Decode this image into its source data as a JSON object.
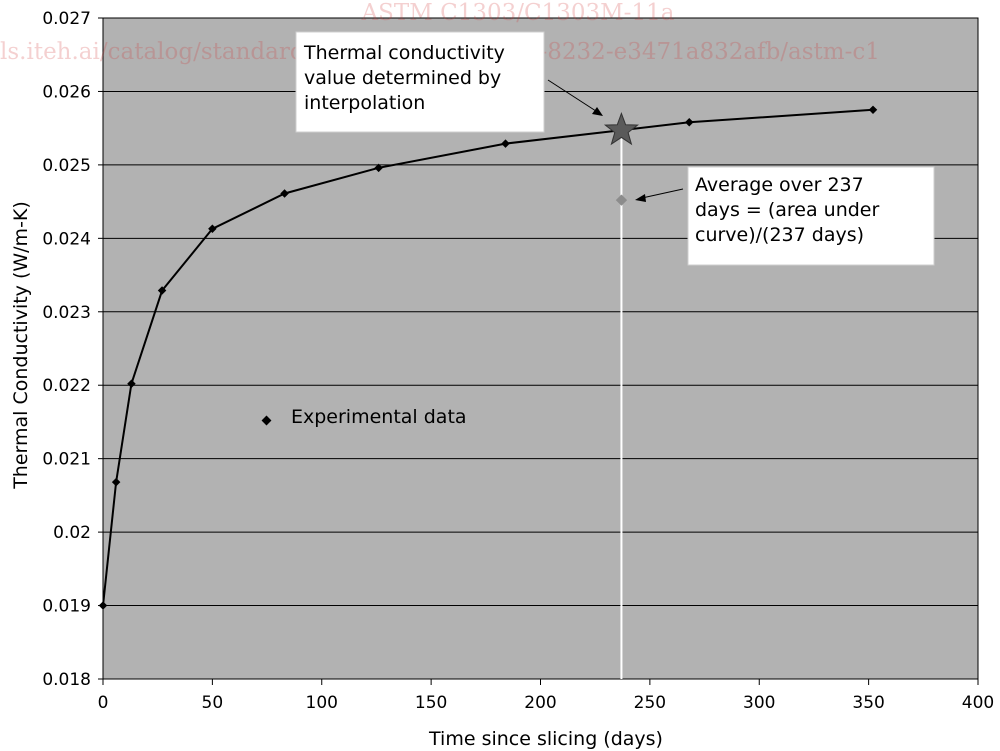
{
  "watermark": {
    "line1": "ASTM C1303/C1303M-11a",
    "line2": "ls.iteh.ai/catalog/standards/sist/afae3fd2-4a06-8232-e3471a832afb/astm-c1"
  },
  "annotations": {
    "interp": [
      "Thermal conductivity",
      "value determined by",
      "interpolation"
    ],
    "avg": [
      "Average over 237",
      "days = (area under",
      "curve)/(237 days)"
    ],
    "legend": "Experimental data"
  },
  "colors": {
    "plot_bg": "#b2b2b2",
    "grid": "#000000",
    "line": "#000000",
    "star": "#5a5a5a",
    "avg_marker": "#8c8c8c",
    "vline": "#ffffff"
  },
  "chart_data": {
    "type": "line",
    "xlabel": "Time since slicing (days)",
    "ylabel": "Thermal Conductivity (W/m-K)",
    "xlim": [
      0,
      400
    ],
    "ylim": [
      0.018,
      0.027
    ],
    "xticks": [
      0,
      50,
      100,
      150,
      200,
      250,
      300,
      350,
      400
    ],
    "yticks": [
      "0.018",
      "0.019",
      "0.02",
      "0.021",
      "0.022",
      "0.023",
      "0.024",
      "0.025",
      "0.026",
      "0.027"
    ],
    "grid": "horizontal",
    "series": [
      {
        "name": "Experimental data",
        "x": [
          0,
          6,
          13,
          27,
          50,
          83,
          126,
          184,
          268,
          352
        ],
        "y": [
          0.019,
          0.02068,
          0.02202,
          0.02329,
          0.02413,
          0.02461,
          0.02496,
          0.02529,
          0.02558,
          0.02575
        ]
      }
    ],
    "interpolated_point": {
      "x": 237,
      "y": 0.02547
    },
    "average_point": {
      "x": 237,
      "y": 0.02452
    },
    "vertical_line_x": 237
  }
}
